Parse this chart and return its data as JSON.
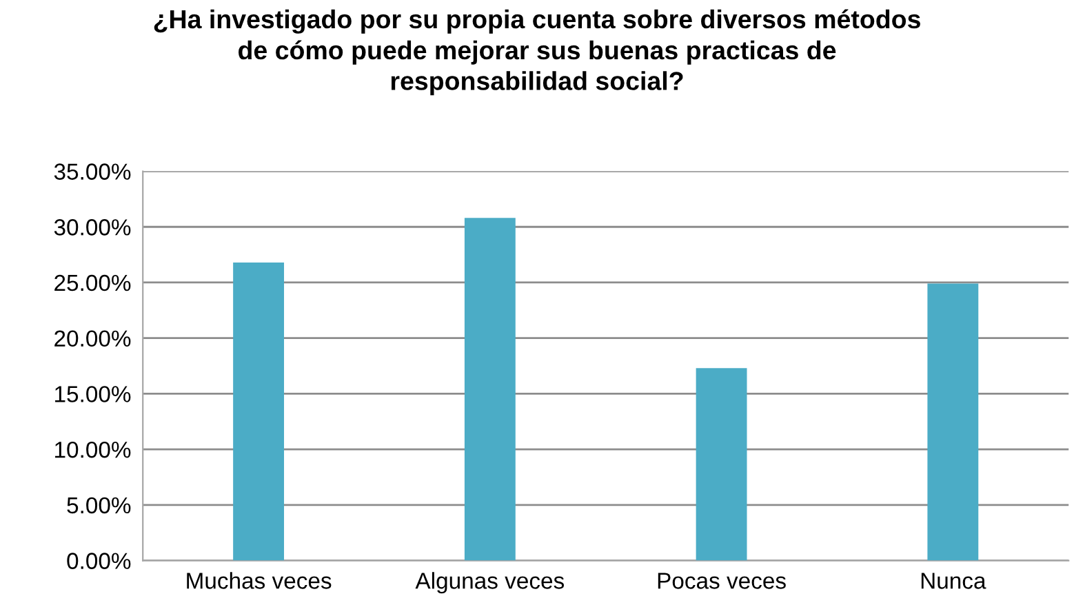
{
  "chart_data": {
    "type": "bar",
    "title": "¿Ha investigado por su propia cuenta sobre diversos métodos\nde cómo puede mejorar sus buenas practicas de\nresponsabilidad social?",
    "categories": [
      "Muchas veces",
      "Algunas veces",
      "Pocas veces",
      "Nunca"
    ],
    "values": [
      26.8,
      30.8,
      17.3,
      24.9
    ],
    "color": "#4bacc6",
    "ylim": [
      0,
      35
    ],
    "yticks": [
      {
        "value": 0,
        "label": "0.00%"
      },
      {
        "value": 5,
        "label": "5.00%"
      },
      {
        "value": 10,
        "label": "10.00%"
      },
      {
        "value": 15,
        "label": "15.00%"
      },
      {
        "value": 20,
        "label": "20.00%"
      },
      {
        "value": 25,
        "label": "25.00%"
      },
      {
        "value": 30,
        "label": "30.00%"
      },
      {
        "value": 35,
        "label": "35.00%"
      }
    ],
    "grid": "y"
  }
}
